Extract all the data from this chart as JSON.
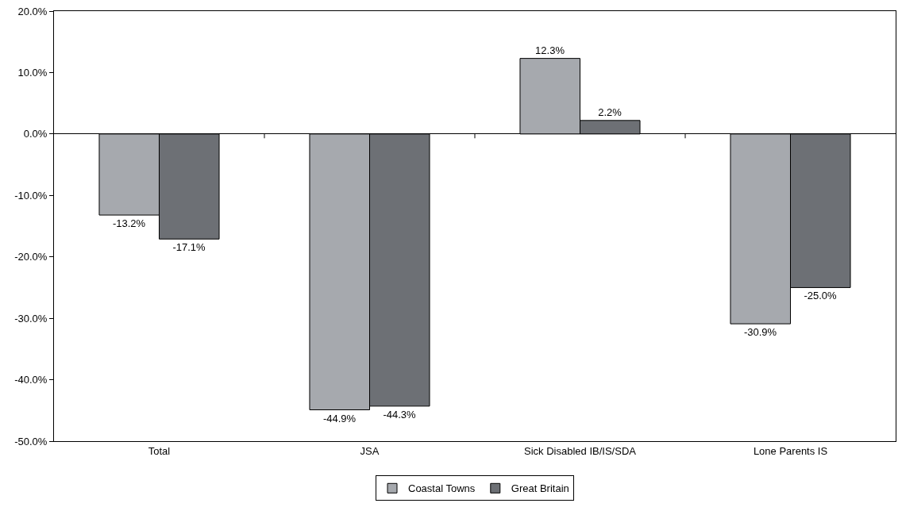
{
  "chart_data": {
    "type": "bar",
    "categories": [
      "Total",
      "JSA",
      "Sick Disabled IB/IS/SDA",
      "Lone Parents IS"
    ],
    "series": [
      {
        "name": "Coastal Towns",
        "color": "#a6a9ae",
        "values": [
          -13.2,
          -44.9,
          12.3,
          -30.9
        ],
        "value_labels": [
          "-13.2%",
          "-44.9%",
          "12.3%",
          "-30.9%"
        ]
      },
      {
        "name": "Great Britain",
        "color": "#6d7075",
        "values": [
          -17.1,
          -44.3,
          2.2,
          -25.0
        ],
        "value_labels": [
          "-17.1%",
          "-44.3%",
          "2.2%",
          "-25.0%"
        ]
      }
    ],
    "ylim": [
      -50,
      20
    ],
    "yticks": [
      {
        "value": -50,
        "label": "-50.0%"
      },
      {
        "value": -40,
        "label": "-40.0%"
      },
      {
        "value": -30,
        "label": "-30.0%"
      },
      {
        "value": -20,
        "label": "-20.0%"
      },
      {
        "value": -10,
        "label": "-10.0%"
      },
      {
        "value": 0,
        "label": "0.0%"
      },
      {
        "value": 10,
        "label": "10.0%"
      },
      {
        "value": 20,
        "label": "20.0%"
      }
    ],
    "legend": "bottom"
  }
}
